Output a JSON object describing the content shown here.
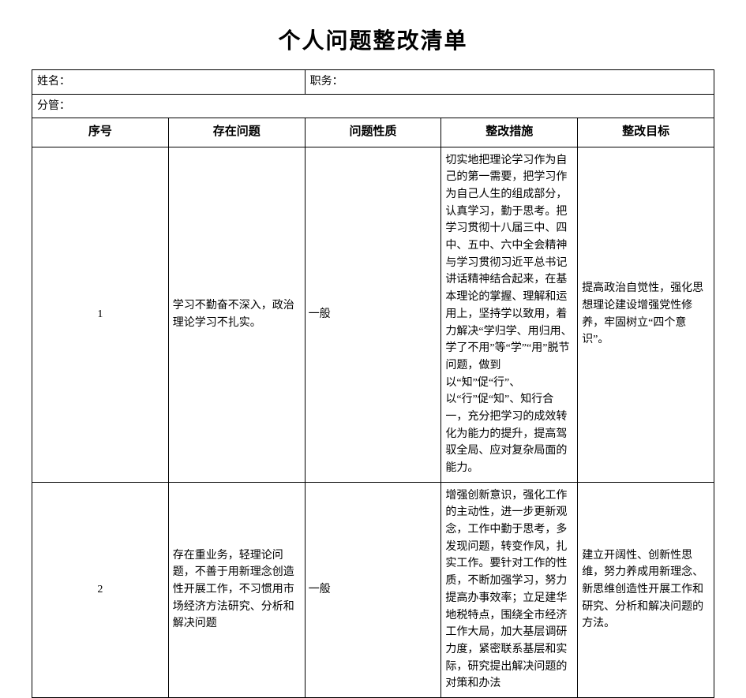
{
  "title": "个人问题整改清单",
  "header": {
    "name_label": "姓名：",
    "name_value": "",
    "position_label": "职务：",
    "position_value": "",
    "dept_label": "分管：",
    "dept_value": ""
  },
  "columns": {
    "seq": "序号",
    "problem": "存在问题",
    "nature": "问题性质",
    "measure": "整改措施",
    "goal": "整改目标"
  },
  "rows": [
    {
      "seq": "1",
      "problem": "学习不勤奋不深入，政治理论学习不扎实。",
      "nature": "一般",
      "measure": "切实地把理论学习作为自己的第一需要，把学习作为自己人生的组成部分，认真学习，勤于思考。把学习贯彻十八届三中、四中、五中、六中全会精神与学习贯彻习近平总书记讲话精神结合起来，在基本理论的掌握、理解和运用上，坚持学以致用，着力解决“学归学、用归用、学了不用”等“学”“用”脱节问题，做到以“知”促“行”、以“行”促“知”、知行合一，充分把学习的成效转化为能力的提升，提高驾驭全局、应对复杂局面的能力。",
      "goal": "提高政治自觉性，强化思想理论建设增强党性修养，牢固树立“四个意识”。"
    },
    {
      "seq": "2",
      "problem": "存在重业务，轻理论问题，不善于用新理念创造性开展工作，不习惯用市场经济方法研究、分析和解决问题",
      "nature": "一般",
      "measure": "增强创新意识，强化工作的主动性，进一步更新观念，工作中勤于思考，多发现问题，转变作风，扎实工作。要针对工作的性质，不断加强学习，努力提高办事效率；立足建华地税特点，围绕全市经济工作大局，加大基层调研力度，紧密联系基层和实际，研究提出解决问题的对策和办法",
      "goal": "建立开阔性、创新性思维，努力养成用新理念、新思维创造性开展工作和研究、分析和解决问题的方法。"
    }
  ]
}
